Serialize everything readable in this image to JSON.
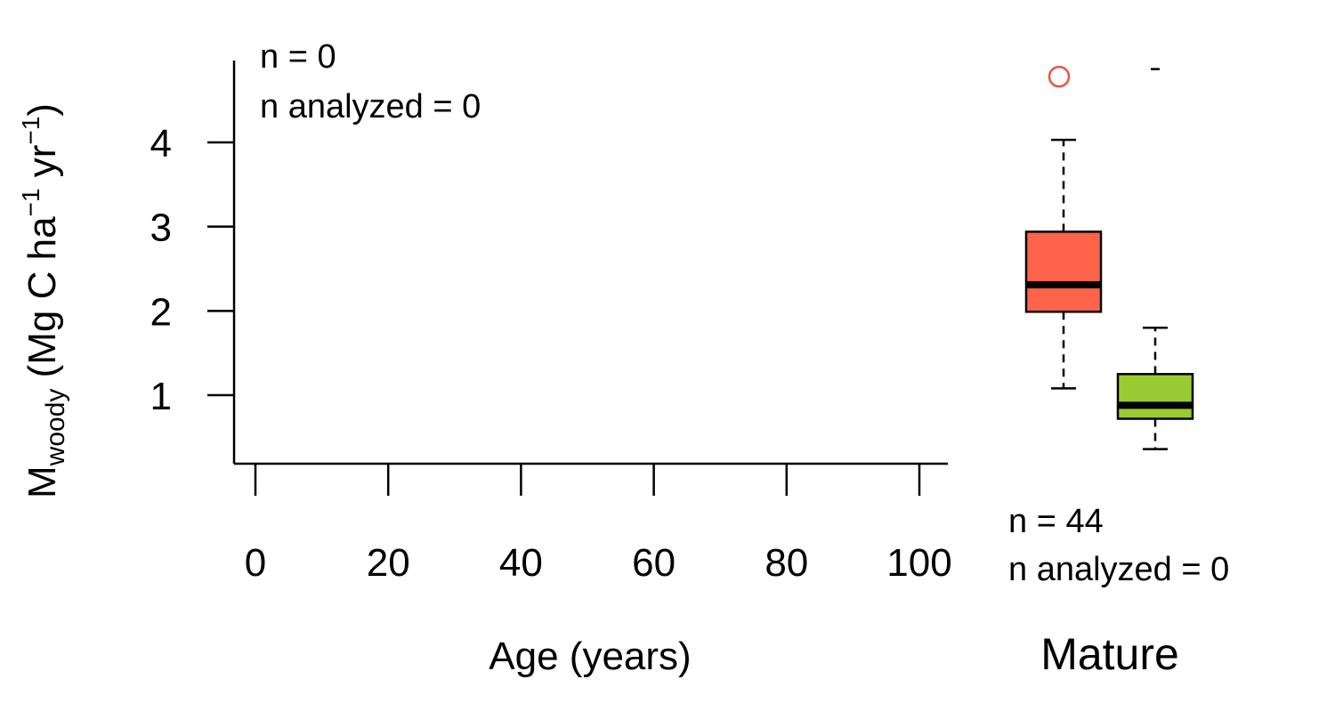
{
  "chart_data": [
    {
      "type": "scatter",
      "xlabel": "Age (years)",
      "ylabel": {
        "main": "M",
        "subscript": "woody",
        "units_prefix": " (Mg C ha",
        "units_exp1": "−1",
        "units_mid": " yr",
        "units_exp2": "−1",
        "units_suffix": ")"
      },
      "xlim": [
        0,
        100
      ],
      "ylim": [
        0.2,
        4.9
      ],
      "x_ticks": [
        "0",
        "20",
        "40",
        "60",
        "80",
        "100"
      ],
      "x_tick_values": [
        0,
        20,
        40,
        60,
        80,
        100
      ],
      "y_ticks": [
        "1",
        "2",
        "3",
        "4"
      ],
      "y_tick_values": [
        1,
        2,
        3,
        4
      ],
      "points": [],
      "annotations": {
        "n": "n = 0",
        "n_analyzed": "n analyzed = 0"
      },
      "grid": false
    },
    {
      "type": "box",
      "xlabel": "Mature",
      "ylim": [
        0.2,
        4.9
      ],
      "boxes": [
        {
          "color": "#ff634a",
          "whisker_low": 1.08,
          "q1": 1.99,
          "median": 2.31,
          "q3": 2.94,
          "whisker_high": 4.03,
          "outliers": [
            4.78
          ],
          "outlier_color": "#e05a48"
        },
        {
          "color": "#99cc33",
          "whisker_low": 0.36,
          "q1": 0.72,
          "median": 0.88,
          "q3": 1.25,
          "whisker_high": 1.8,
          "outliers": [
            4.87
          ],
          "outlier_color": "#000000"
        }
      ],
      "annotations": {
        "n": "n = 44",
        "n_analyzed": "n analyzed = 0"
      }
    }
  ]
}
